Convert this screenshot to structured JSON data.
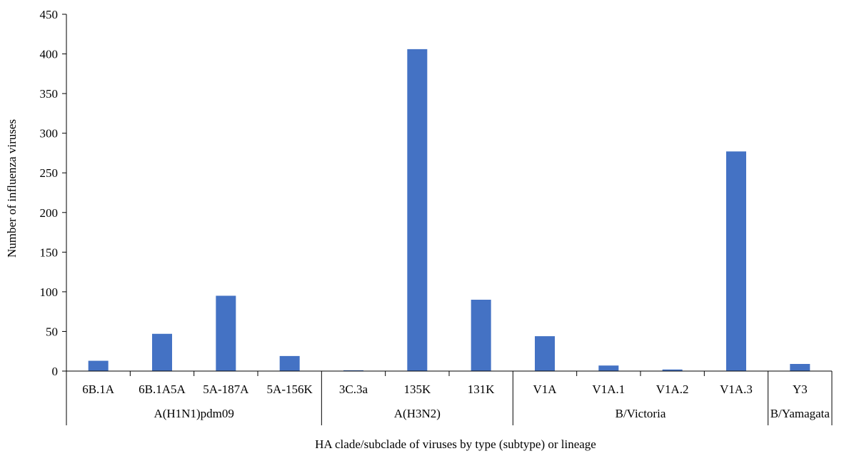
{
  "chart_data": {
    "type": "bar",
    "title": "",
    "xlabel": "HA clade/subclade of viruses by type (subtype) or lineage",
    "ylabel": "Number of influenza viruses",
    "ylim": [
      0,
      450
    ],
    "yticks": [
      0,
      50,
      100,
      150,
      200,
      250,
      300,
      350,
      400,
      450
    ],
    "categories": [
      "6B.1A",
      "6B.1A5A",
      "5A-187A",
      "5A-156K",
      "3C.3a",
      "135K",
      "131K",
      "V1A",
      "V1A.1",
      "V1A.2",
      "V1A.3",
      "Y3"
    ],
    "values": [
      13,
      47,
      95,
      19,
      1,
      406,
      90,
      44,
      7,
      2,
      277,
      9
    ],
    "groups": [
      {
        "label": "A(H1N1)pdm09",
        "start": 0,
        "end": 3
      },
      {
        "label": "A(H3N2)",
        "start": 4,
        "end": 6
      },
      {
        "label": "B/Victoria",
        "start": 7,
        "end": 10
      },
      {
        "label": "B/Yamagata",
        "start": 11,
        "end": 11
      }
    ],
    "bar_color": "#4472C4",
    "grid": false,
    "legend": "none"
  }
}
